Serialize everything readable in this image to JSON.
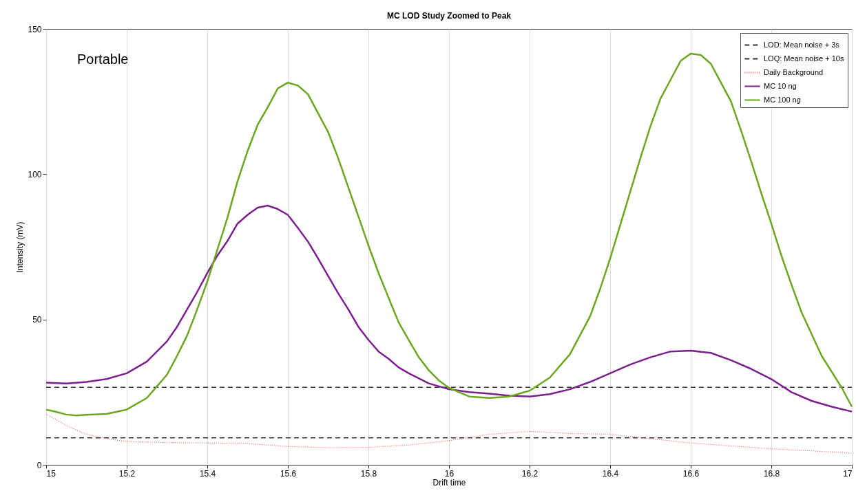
{
  "chart_data": {
    "type": "line",
    "title": "MC LOD Study Zoomed to Peak",
    "xlabel": "Drift time",
    "ylabel": "Intensity (mV)",
    "annotations": [
      "Portable"
    ],
    "xlim": [
      15,
      17
    ],
    "xticks": [
      15,
      15.2,
      15.4,
      15.6,
      15.8,
      16,
      16.2,
      16.4,
      16.6,
      16.8,
      17
    ],
    "ylim": [
      0,
      150
    ],
    "yticks": [
      0,
      50,
      100,
      150
    ],
    "grid": "x",
    "legend": "top right",
    "series": [
      {
        "name": "LOD: Mean noise + 3s",
        "color": "#333333",
        "line_style": "dashed",
        "x": [
          15,
          17
        ],
        "values": [
          9.3,
          9.3
        ]
      },
      {
        "name": "LOQ: Mean noise + 10s",
        "color": "#333333",
        "line_style": "dashed",
        "x": [
          15,
          17
        ],
        "values": [
          26.7,
          26.7
        ]
      },
      {
        "name": "Daily Background",
        "color": "#ff5555",
        "line_style": "dotted",
        "x": [
          15,
          15.05,
          15.1,
          15.15,
          15.2,
          15.3,
          15.4,
          15.5,
          15.6,
          15.7,
          15.8,
          15.9,
          16,
          16.1,
          16.2,
          16.3,
          16.4,
          16.5,
          16.6,
          16.7,
          16.8,
          16.9,
          17
        ],
        "values": [
          17.5,
          13.5,
          10.5,
          9,
          8,
          7.7,
          7.5,
          7.3,
          6.3,
          5.9,
          6,
          6.8,
          8.3,
          10.5,
          11.5,
          10.8,
          10.5,
          9,
          7.5,
          6.5,
          5.5,
          4.8,
          4
        ]
      },
      {
        "name": "MC 10 ng",
        "color": "#7b1f8e",
        "line_style": "solid",
        "x": [
          15,
          15.05,
          15.1,
          15.15,
          15.2,
          15.25,
          15.3,
          15.325,
          15.35,
          15.375,
          15.4,
          15.425,
          15.45,
          15.475,
          15.5,
          15.525,
          15.55,
          15.575,
          15.6,
          15.625,
          15.65,
          15.675,
          15.7,
          15.725,
          15.75,
          15.775,
          15.8,
          15.825,
          15.85,
          15.875,
          15.9,
          15.95,
          16,
          16.05,
          16.1,
          16.15,
          16.2,
          16.25,
          16.3,
          16.35,
          16.4,
          16.45,
          16.5,
          16.55,
          16.6,
          16.65,
          16.7,
          16.75,
          16.8,
          16.85,
          16.9,
          16.95,
          17
        ],
        "values": [
          28.3,
          28,
          28.5,
          29.5,
          31.5,
          35.5,
          42.5,
          47.5,
          53.5,
          59.5,
          66,
          72,
          77,
          83,
          86,
          88.5,
          89.2,
          88,
          86,
          81.5,
          76.8,
          71,
          65,
          59,
          53.5,
          47.5,
          43,
          39,
          36.5,
          33.5,
          31.5,
          28,
          26,
          25,
          24.5,
          23.8,
          23.5,
          24.3,
          26,
          28.5,
          31.5,
          34.5,
          37,
          39,
          39.3,
          38.5,
          36,
          33,
          29.5,
          25,
          22,
          20,
          18.3
        ]
      },
      {
        "name": "MC 100 ng",
        "color": "#6aa61e",
        "line_style": "solid",
        "x": [
          15,
          15.025,
          15.05,
          15.075,
          15.1,
          15.15,
          15.2,
          15.25,
          15.275,
          15.3,
          15.325,
          15.35,
          15.375,
          15.4,
          15.425,
          15.45,
          15.475,
          15.5,
          15.525,
          15.55,
          15.575,
          15.6,
          15.625,
          15.65,
          15.675,
          15.7,
          15.725,
          15.75,
          15.775,
          15.8,
          15.825,
          15.85,
          15.875,
          15.9,
          15.925,
          15.95,
          15.975,
          16,
          16.025,
          16.05,
          16.1,
          16.15,
          16.2,
          16.25,
          16.3,
          16.325,
          16.35,
          16.375,
          16.4,
          16.425,
          16.45,
          16.475,
          16.5,
          16.525,
          16.55,
          16.575,
          16.6,
          16.625,
          16.65,
          16.675,
          16.7,
          16.725,
          16.75,
          16.775,
          16.8,
          16.825,
          16.85,
          16.875,
          16.9,
          16.925,
          16.95,
          16.975,
          17
        ],
        "values": [
          19,
          18.2,
          17.3,
          17,
          17.2,
          17.5,
          19,
          23,
          27,
          31,
          37.5,
          44.5,
          53.5,
          63,
          74,
          85,
          97.5,
          108,
          117,
          123,
          129.5,
          131.5,
          130.5,
          127.5,
          121,
          114.5,
          105.5,
          95.5,
          85.5,
          75.5,
          66,
          57.5,
          49,
          43,
          37,
          32.5,
          29,
          26.5,
          25,
          23.5,
          23,
          23.5,
          25.5,
          30,
          38,
          44.5,
          51,
          60.5,
          71,
          82.5,
          94,
          105.5,
          116.5,
          126,
          132.5,
          139,
          141.5,
          141,
          138,
          131.5,
          125,
          115,
          104.5,
          93.5,
          83,
          72,
          62,
          52.5,
          45,
          37.5,
          32,
          26.5,
          20
        ]
      }
    ]
  }
}
